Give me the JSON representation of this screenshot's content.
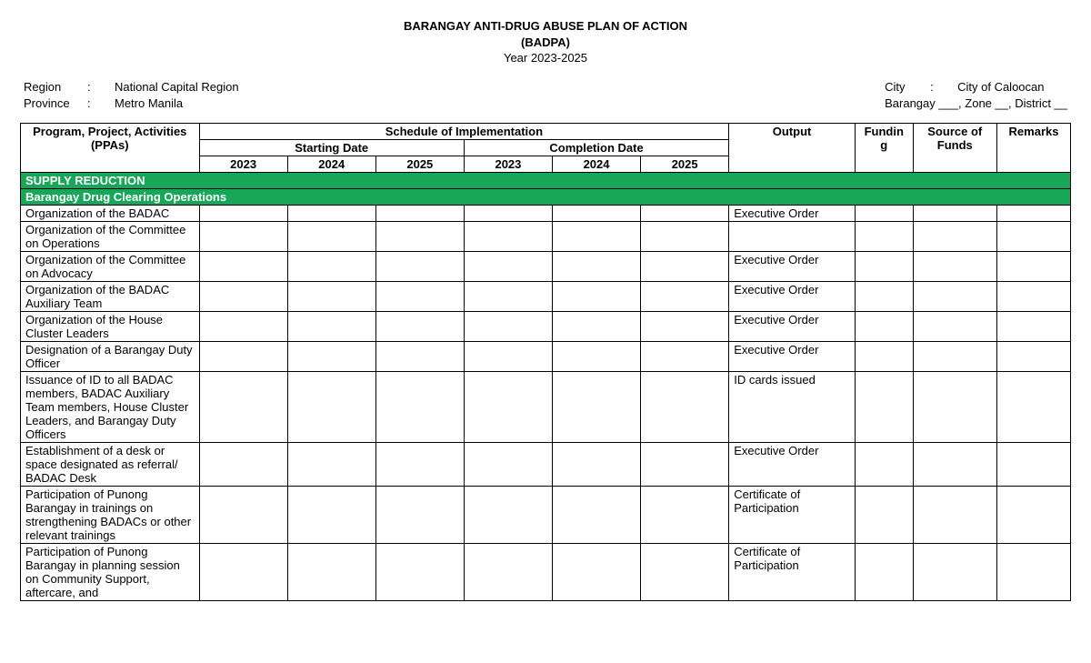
{
  "header": {
    "title1": "BARANGAY ANTI-DRUG ABUSE PLAN OF ACTION",
    "title2": "(BADPA)",
    "title3": "Year 2023-2025"
  },
  "meta": {
    "left": {
      "region_label": "Region",
      "region_value": "National Capital Region",
      "province_label": "Province",
      "province_value": "Metro Manila"
    },
    "right": {
      "city_label": "City",
      "city_value": "City of Caloocan",
      "barangay_line": "Barangay ___, Zone __, District __"
    },
    "colon": ":"
  },
  "thead": {
    "ppa": "Program, Project, Activities (PPAs)",
    "sched": "Schedule of Implementation",
    "start": "Starting Date",
    "complete": "Completion Date",
    "output": "Output",
    "funding": "Fundin g",
    "source": "Source of Funds",
    "remarks": "Remarks",
    "y2023": "2023",
    "y2024": "2024",
    "y2025": "2025"
  },
  "section": {
    "supply": "SUPPLY REDUCTION",
    "bdco": "Barangay Drug Clearing Operations"
  },
  "rows": [
    {
      "ppa": "Organization of the BADAC",
      "output": "Executive Order"
    },
    {
      "ppa": "Organization of the Committee on Operations",
      "output": ""
    },
    {
      "ppa": "Organization of the Committee on Advocacy",
      "output": "Executive Order"
    },
    {
      "ppa": "Organization of the BADAC Auxiliary Team",
      "output": "Executive Order"
    },
    {
      "ppa": "Organization of the House Cluster Leaders",
      "output": "Executive Order"
    },
    {
      "ppa": "Designation of a Barangay Duty Officer",
      "output": "Executive Order"
    },
    {
      "ppa": "Issuance of ID to all BADAC members, BADAC Auxiliary Team members, House Cluster Leaders, and Barangay Duty Officers",
      "output": "ID cards issued"
    },
    {
      "ppa": "Establishment of a desk or space designated as referral/ BADAC Desk",
      "output": "Executive Order"
    },
    {
      "ppa": "Participation of Punong Barangay in trainings on strengthening BADACs or other relevant trainings",
      "output": "Certificate of Participation"
    },
    {
      "ppa": "Participation of Punong Barangay in planning session on Community Support, aftercare, and",
      "output": "Certificate of Participation"
    }
  ]
}
